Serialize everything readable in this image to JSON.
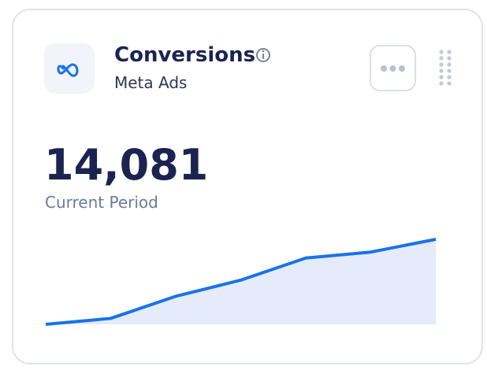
{
  "widget": {
    "title": "Conversions",
    "subtitle": "Meta Ads",
    "value": "14,081",
    "value_caption": "Current Period"
  },
  "chart_data": {
    "type": "area",
    "values": [
      0,
      7,
      33,
      52,
      78,
      85,
      100
    ],
    "ylim": [
      0,
      100
    ],
    "color": "#1a73e8",
    "fill": "#e5ebfb"
  }
}
